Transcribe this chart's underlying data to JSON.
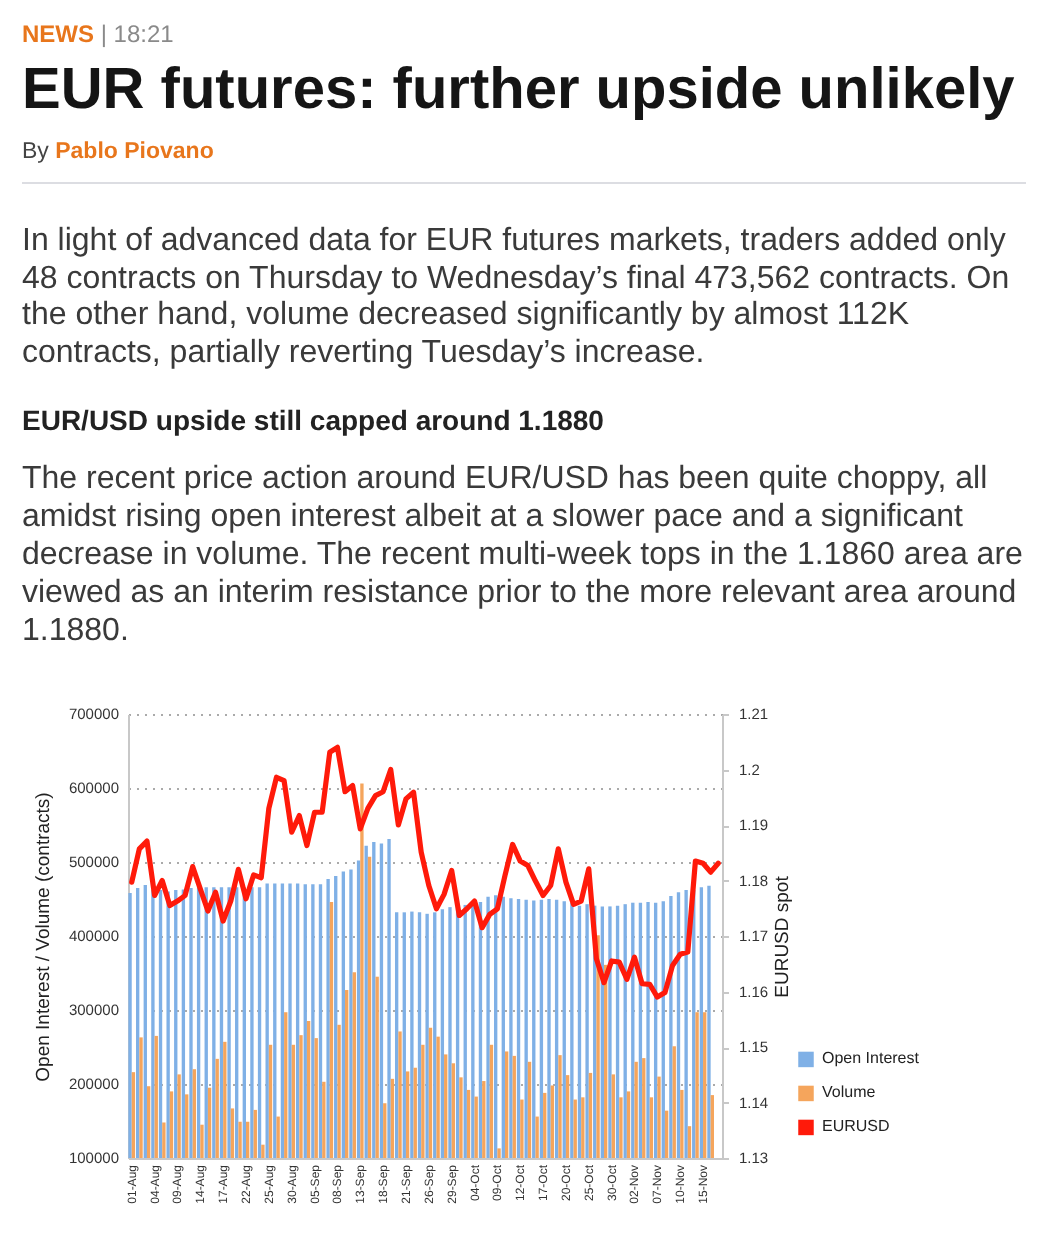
{
  "chart_data": {
    "type": "bar",
    "title": "EUR futures: further upside unlikely",
    "annotations": [
      "NEWS | 18:21",
      "By Pablo Piovano",
      "In light of advanced data for EUR futures markets, traders added only 48 contracts on Thursday to Wednesday’s final 473,562 contracts. On the other hand, volume decreased significantly by almost 112K contracts, partially reverting Tuesday’s increase.",
      "EUR/USD upside still capped around 1.1880",
      "The recent price action around EUR/USD has been quite choppy, all amidst rising open interest albeit at a slower pace and a significant decrease in volume. The recent multi-week tops in the 1.1860 area are viewed as an interim resistance prior to the more relevant area around 1.1880."
    ],
    "ylabel": "Open Interest / Volume (contracts)",
    "y2label": "EURUSD spot",
    "categories": [
      "01-Aug",
      null,
      null,
      "04-Aug",
      null,
      null,
      "09-Aug",
      null,
      null,
      "14-Aug",
      null,
      null,
      "17-Aug",
      null,
      null,
      "22-Aug",
      null,
      null,
      "25-Aug",
      null,
      null,
      "30-Aug",
      null,
      null,
      "05-Sep",
      null,
      null,
      "08-Sep",
      null,
      null,
      "13-Sep",
      null,
      null,
      "18-Sep",
      null,
      null,
      "21-Sep",
      null,
      null,
      "26-Sep",
      null,
      null,
      "29-Sep",
      null,
      null,
      "04-Oct",
      null,
      null,
      "09-Oct",
      null,
      null,
      "12-Oct",
      null,
      null,
      "17-Oct",
      null,
      null,
      "20-Oct",
      null,
      null,
      "25-Oct",
      null,
      null,
      "30-Oct",
      null,
      null,
      "02-Nov",
      null,
      null,
      "07-Nov",
      null,
      null,
      "10-Nov",
      null,
      null,
      "15-Nov",
      null,
      null
    ],
    "series": [
      {
        "name": "Open Interest",
        "color": "#7fb0e6",
        "values": [
          458000,
          465000,
          469000,
          462000,
          462000,
          460000,
          462000,
          463000,
          465000,
          466000,
          466000,
          466000,
          466000,
          466000,
          466000,
          466000,
          466000,
          466000,
          471000,
          471000,
          471000,
          471000,
          471000,
          470000,
          470000,
          470000,
          477000,
          481000,
          487000,
          490000,
          502000,
          522000,
          527000,
          525000,
          531000,
          432000,
          432000,
          433000,
          432000,
          430000,
          432000,
          436000,
          439000,
          441000,
          442000,
          444000,
          446000,
          453000,
          455000,
          453000,
          451000,
          450000,
          449000,
          448000,
          449000,
          450000,
          449000,
          447000,
          445000,
          441000,
          443000,
          441000,
          440000,
          440000,
          441000,
          443000,
          445000,
          445000,
          446000,
          445000,
          447000,
          454000,
          459000,
          462000,
          462000,
          466000,
          468000,
          null
        ]
      },
      {
        "name": "Volume",
        "color": "#f5a55c",
        "values": [
          216000,
          263000,
          197000,
          265000,
          148000,
          190000,
          213000,
          186000,
          220000,
          145000,
          195000,
          234000,
          257000,
          167000,
          149000,
          149000,
          165000,
          118000,
          253000,
          156000,
          297000,
          253000,
          266000,
          285000,
          262000,
          203000,
          446000,
          280000,
          327000,
          351000,
          606000,
          507000,
          345000,
          174000,
          207000,
          271000,
          217000,
          222000,
          253000,
          276000,
          264000,
          240000,
          228000,
          209000,
          192000,
          183000,
          204000,
          253000,
          113000,
          244000,
          238000,
          179000,
          230000,
          156000,
          188000,
          198000,
          239000,
          212000,
          179000,
          182000,
          215000,
          401000,
          361000,
          213000,
          182000,
          190000,
          230000,
          235000,
          182000,
          210000,
          164000,
          251000,
          192000,
          143000,
          297000,
          297000,
          185000,
          null
        ]
      },
      {
        "name": "EURUSD",
        "color": "#ff1a0a",
        "type": "line",
        "axis": "y2",
        "values": [
          1.1797,
          1.1857,
          1.1871,
          1.1773,
          1.18,
          1.1755,
          1.1763,
          1.1773,
          1.1825,
          1.1785,
          1.1745,
          1.1779,
          1.1727,
          1.1763,
          1.182,
          1.1767,
          1.181,
          1.1805,
          1.193,
          1.1986,
          1.198,
          1.1887,
          1.1917,
          1.1863,
          1.1923,
          1.1923,
          1.2031,
          1.204,
          1.196,
          1.1971,
          1.1893,
          1.193,
          1.1953,
          1.196,
          1.2,
          1.19,
          1.1947,
          1.1959,
          1.1851,
          1.1791,
          1.1749,
          1.1775,
          1.1818,
          1.1737,
          1.1749,
          1.1763,
          1.1715,
          1.1739,
          1.1749,
          1.1809,
          1.1865,
          1.1835,
          1.1827,
          1.1799,
          1.1773,
          1.1791,
          1.1857,
          1.1797,
          1.1757,
          1.1763,
          1.1821,
          1.1659,
          1.1616,
          1.1655,
          1.1653,
          1.1622,
          1.1662,
          1.1614,
          1.1613,
          1.159,
          1.1598,
          1.1647,
          1.1667,
          1.1671,
          1.1835,
          1.1831,
          1.1815,
          1.1831
        ]
      }
    ],
    "ylim": [
      100000,
      700000
    ],
    "yticks": [
      100000,
      200000,
      300000,
      400000,
      500000,
      600000,
      700000
    ],
    "y2lim": [
      1.13,
      1.21
    ],
    "y2ticks": [
      1.13,
      1.14,
      1.15,
      1.16,
      1.17,
      1.18,
      1.19,
      1.2,
      1.21
    ],
    "grid": "y",
    "legend": "bottom right"
  }
}
